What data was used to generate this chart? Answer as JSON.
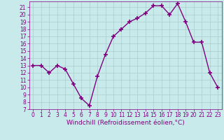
{
  "x": [
    0,
    1,
    2,
    3,
    4,
    5,
    6,
    7,
    8,
    9,
    10,
    11,
    12,
    13,
    14,
    15,
    16,
    17,
    18,
    19,
    20,
    21,
    22,
    23
  ],
  "y": [
    13,
    13,
    12,
    13,
    12.5,
    10.5,
    8.5,
    7.5,
    11.5,
    14.5,
    17,
    18,
    19,
    19.5,
    20.2,
    21.2,
    21.2,
    20,
    21.5,
    19,
    16.2,
    16.2,
    12,
    10
  ],
  "line_color": "#800080",
  "marker": "+",
  "marker_size": 4,
  "marker_linewidth": 1.2,
  "bg_color": "#c8eaea",
  "grid_color": "#aacccc",
  "xlabel": "Windchill (Refroidissement éolien,°C)",
  "xlabel_color": "#800080",
  "tick_color": "#800080",
  "ylim": [
    7,
    21.8
  ],
  "xlim": [
    -0.5,
    23.5
  ],
  "yticks": [
    7,
    8,
    9,
    10,
    11,
    12,
    13,
    14,
    15,
    16,
    17,
    18,
    19,
    20,
    21
  ],
  "xticks": [
    0,
    1,
    2,
    3,
    4,
    5,
    6,
    7,
    8,
    9,
    10,
    11,
    12,
    13,
    14,
    15,
    16,
    17,
    18,
    19,
    20,
    21,
    22,
    23
  ],
  "tick_fontsize": 5.5,
  "xlabel_fontsize": 6.5,
  "linewidth": 1.0
}
